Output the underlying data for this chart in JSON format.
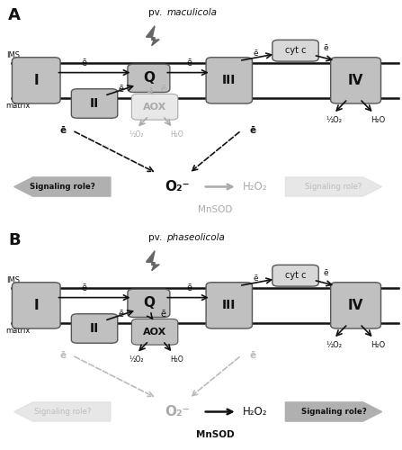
{
  "bg_color": "#ffffff",
  "dark_color": "#111111",
  "gray_color": "#aaaaaa",
  "light_gray": "#cccccc",
  "box_fill": "#c0c0c0",
  "aox_fill_A": "#e8e8e8",
  "aox_fill_B": "#c0c0c0",
  "cytc_fill": "#d8d8d8",
  "e_label": "ē",
  "Q_label": "Q",
  "AOX_label": "AOX",
  "cytc_label": "cyt c",
  "O2_label": "O₂⁻",
  "H2O2_label": "H₂O₂",
  "MnSOD_label": "MnSOD",
  "half_O2_label": "½O₂",
  "H2O_label": "H₂O",
  "IMS_label": "IMS",
  "matrix_label": "matrix",
  "signaling_role": "Signaling role?",
  "pv_A_prefix": "pv. ",
  "pv_A_species": "maculicola",
  "pv_B_prefix": "pv. ",
  "pv_B_species": "phaseolicola"
}
